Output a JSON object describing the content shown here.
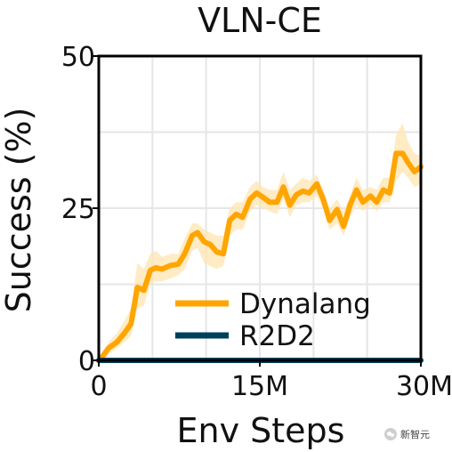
{
  "chart_data": {
    "type": "line",
    "title": "VLN-CE",
    "xlabel": "Env Steps",
    "ylabel": "Success (%)",
    "xlim": [
      0,
      30
    ],
    "ylim": [
      0,
      50
    ],
    "x_ticks": [
      {
        "value": 0,
        "label": "0"
      },
      {
        "value": 15,
        "label": "15M"
      },
      {
        "value": 30,
        "label": "30M"
      }
    ],
    "y_ticks": [
      {
        "value": 0,
        "label": "0"
      },
      {
        "value": 25,
        "label": "25"
      },
      {
        "value": 50,
        "label": "50"
      }
    ],
    "grid": true,
    "legend_position": "lower-center",
    "series": [
      {
        "name": "Dynalang",
        "color": "#ffa500",
        "band_color": "#ffe4b0",
        "x": [
          0.3,
          0.9,
          1.7,
          2.4,
          3.0,
          3.6,
          4.2,
          4.8,
          5.3,
          5.9,
          6.7,
          7.4,
          8.0,
          8.7,
          9.2,
          9.8,
          10.4,
          11.0,
          11.6,
          12.2,
          12.8,
          13.4,
          14.1,
          14.7,
          15.3,
          15.9,
          16.6,
          17.2,
          17.8,
          18.4,
          19.0,
          19.6,
          20.3,
          20.9,
          21.5,
          22.2,
          22.8,
          23.4,
          24.0,
          24.6,
          25.3,
          25.9,
          26.5,
          27.1,
          27.7,
          28.3,
          28.8,
          29.4,
          30.0
        ],
        "values": [
          0.5,
          2.0,
          3.0,
          4.5,
          6.0,
          12.0,
          11.5,
          14.8,
          15.2,
          15.0,
          15.6,
          15.8,
          17.5,
          20.5,
          21.0,
          19.5,
          19.0,
          17.8,
          17.5,
          23.0,
          24.0,
          23.5,
          26.5,
          27.5,
          26.8,
          26.0,
          26.0,
          28.5,
          25.5,
          27.2,
          27.8,
          27.5,
          29.0,
          26.5,
          23.0,
          24.8,
          22.0,
          25.5,
          28.0,
          26.0,
          27.0,
          26.0,
          28.0,
          27.5,
          34.0,
          34.0,
          32.5,
          31.0,
          31.8
        ],
        "lower": [
          0.2,
          1.0,
          2.0,
          3.0,
          4.0,
          8.5,
          9.0,
          12.5,
          13.0,
          13.0,
          13.5,
          14.0,
          15.0,
          18.0,
          18.5,
          16.0,
          15.5,
          15.0,
          15.5,
          20.5,
          21.5,
          21.5,
          24.5,
          25.5,
          25.0,
          24.5,
          24.0,
          26.5,
          23.5,
          25.5,
          26.0,
          26.0,
          27.0,
          25.0,
          21.5,
          22.5,
          20.5,
          23.5,
          25.5,
          24.5,
          25.5,
          24.5,
          26.0,
          26.0,
          29.5,
          31.0,
          30.0,
          28.5,
          29.0
        ],
        "upper": [
          0.8,
          3.0,
          4.5,
          6.5,
          8.5,
          16.0,
          15.0,
          17.5,
          18.0,
          17.0,
          17.5,
          17.5,
          20.0,
          22.5,
          22.5,
          21.5,
          21.0,
          20.5,
          20.5,
          25.0,
          26.0,
          26.0,
          28.5,
          29.5,
          28.5,
          28.0,
          28.0,
          31.0,
          28.0,
          29.0,
          30.0,
          29.5,
          30.5,
          28.0,
          25.0,
          26.5,
          24.5,
          27.0,
          30.0,
          28.0,
          28.5,
          28.0,
          30.0,
          30.0,
          37.0,
          39.0,
          36.0,
          34.0,
          33.5
        ]
      },
      {
        "name": "R2D2",
        "color": "#003f5c",
        "x": [
          0,
          30
        ],
        "values": [
          0,
          0
        ]
      }
    ]
  },
  "watermark": {
    "text": "新智元"
  }
}
